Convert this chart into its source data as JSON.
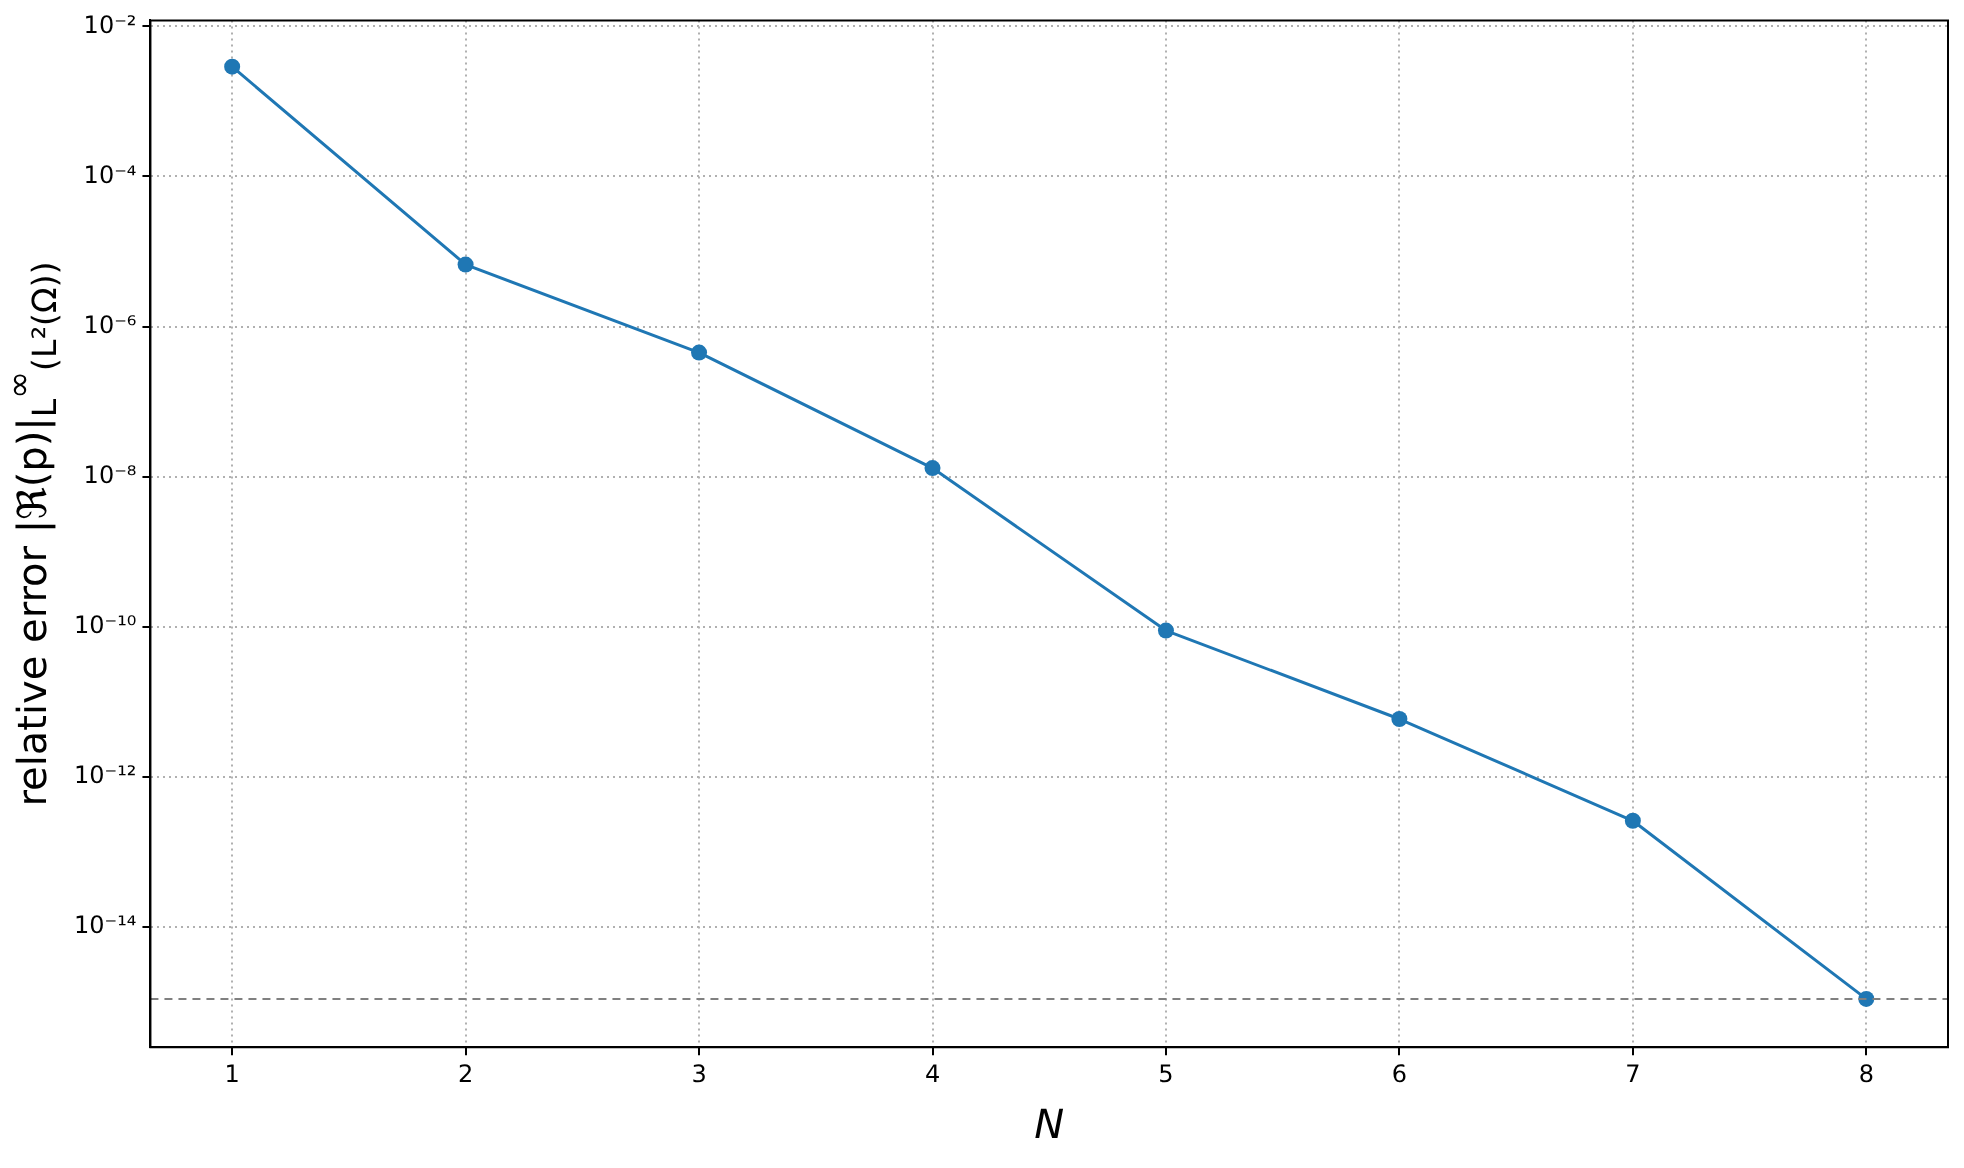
{
  "chart_data": {
    "type": "line",
    "xlabel": "N",
    "ylabel": "relative error |ℜ(p)|$_{L}$$^{∞}$$_{(L²(Ω))}$",
    "x": [
      1,
      2,
      3,
      4,
      5,
      6,
      7,
      8
    ],
    "series": [
      {
        "color": "#1f77b4",
        "values": [
          0.0029,
          6.7e-06,
          4.5e-07,
          1.3e-08,
          8.9e-11,
          5.9e-12,
          2.6e-13,
          1.1e-15
        ]
      }
    ],
    "log": "y",
    "xlim": [
      0.65,
      8.35
    ],
    "xticks": [
      1,
      2,
      3,
      4,
      5,
      6,
      7,
      8
    ],
    "ylim": [
      2.5e-16,
      0.012
    ],
    "yticks": [
      {
        "value": 1e-14,
        "label": "10⁻¹⁴"
      },
      {
        "value": 1e-12,
        "label": "10⁻¹²"
      },
      {
        "value": 1e-10,
        "label": "10⁻¹⁰"
      },
      {
        "value": 1e-08,
        "label": "10⁻⁸"
      },
      {
        "value": 1e-06,
        "label": "10⁻⁶"
      },
      {
        "value": 0.0001,
        "label": "10⁻⁴"
      },
      {
        "value": 0.01,
        "label": "10⁻²"
      }
    ],
    "grid": true,
    "marker": "circle",
    "line_style": "solid",
    "ref_lines": [
      {
        "axis": "y",
        "value": 1.1e-15,
        "color": "#808080",
        "line_style": "dashed"
      }
    ]
  }
}
